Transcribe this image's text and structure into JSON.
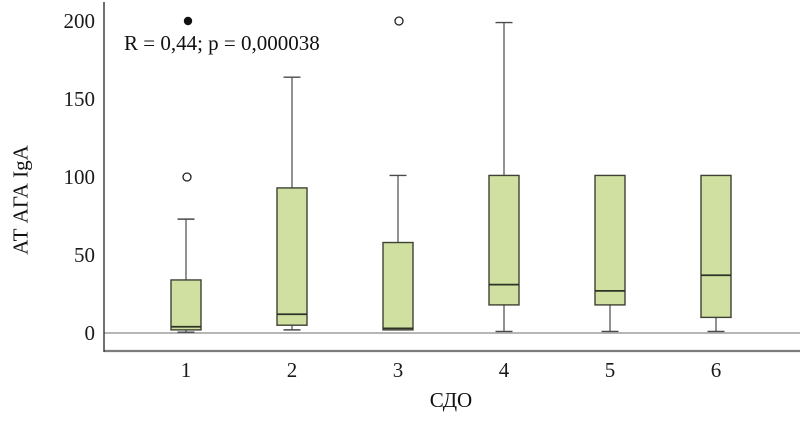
{
  "chart_data": {
    "type": "box",
    "title": "",
    "xlabel": "СДО",
    "ylabel": "АТ АГА  IgA",
    "annotation": "R = 0,44; p = 0,000038",
    "ylim": [
      0,
      200
    ],
    "yticks": [
      0,
      50,
      100,
      150,
      200
    ],
    "grid": "off",
    "legend": "none",
    "categories": [
      "1",
      "2",
      "3",
      "4",
      "5",
      "6"
    ],
    "boxes": [
      {
        "category": "1",
        "whisker_low": 0.5,
        "q1": 2,
        "median": 4,
        "q3": 34,
        "whisker_high": 73,
        "outliers": [
          {
            "value": 100,
            "style": "open"
          },
          {
            "value": 200,
            "style": "filled"
          }
        ]
      },
      {
        "category": "2",
        "whisker_low": 2,
        "q1": 5,
        "median": 12,
        "q3": 93,
        "whisker_high": 164,
        "outliers": []
      },
      {
        "category": "3",
        "whisker_low": 2,
        "q1": 2,
        "median": 3,
        "q3": 58,
        "whisker_high": 101,
        "outliers": [
          {
            "value": 200,
            "style": "open"
          }
        ]
      },
      {
        "category": "4",
        "whisker_low": 1,
        "q1": 18,
        "median": 31,
        "q3": 101,
        "whisker_high": 199,
        "outliers": []
      },
      {
        "category": "5",
        "whisker_low": 1,
        "q1": 18,
        "median": 27,
        "q3": 101,
        "whisker_high": 101,
        "outliers": []
      },
      {
        "category": "6",
        "whisker_low": 1,
        "q1": 10,
        "median": 37,
        "q3": 101,
        "whisker_high": 101,
        "outliers": []
      }
    ],
    "colors": {
      "box_fill": "#cfe0a1",
      "box_border": "#3e4234",
      "median": "#2f3327",
      "whisker": "#4a4a4a",
      "outlier_stroke": "#222222",
      "outlier_filled": "#111111",
      "zero_line": "#8a8a8a",
      "frame": "#7d7d7d",
      "axis": "#333333"
    }
  }
}
